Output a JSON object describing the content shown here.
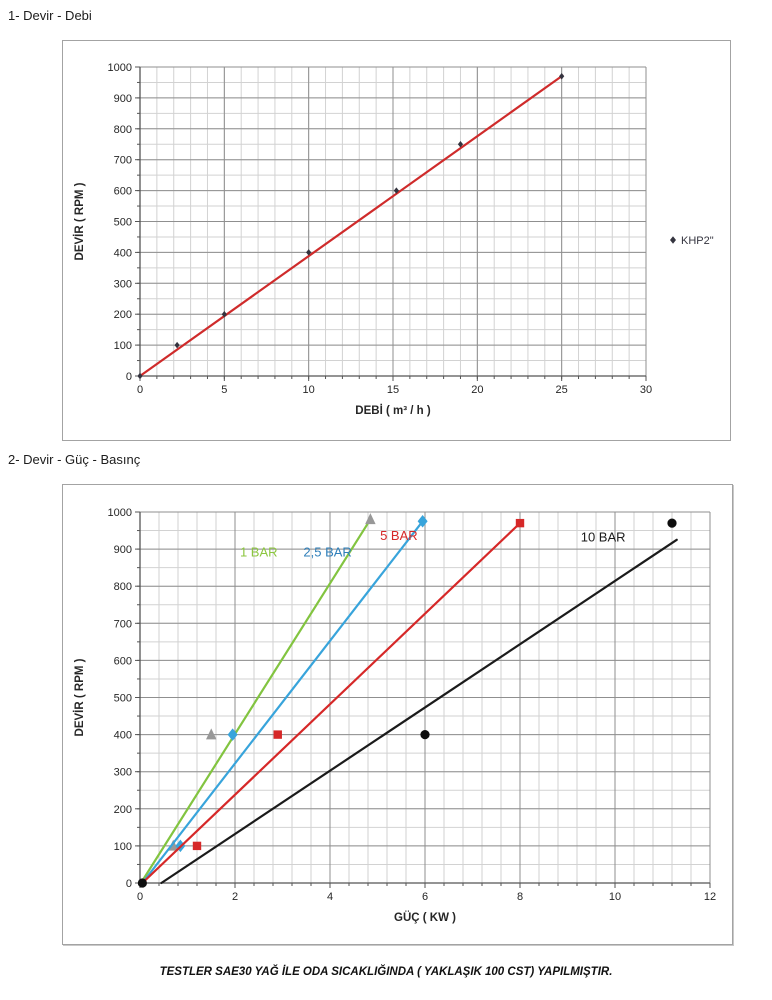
{
  "page": {
    "section1_title": "1- Devir - Debi",
    "section2_title": "2- Devir - Güç - Basınç",
    "footer": "TESTLER SAE30 YAĞ İLE ODA SICAKLIĞINDA ( YAKLAŞIK 100 CST) YAPILMIŞTIR."
  },
  "chart_data": [
    {
      "type": "scatter",
      "title": "",
      "xlabel": "DEBİ ( m³ / h )",
      "ylabel": "DEVİR ( RPM )",
      "xlim": [
        0,
        30
      ],
      "ylim": [
        0,
        1000
      ],
      "x_major": 5,
      "x_minor": 1,
      "y_major": 100,
      "y_minor": 50,
      "grid": "on",
      "legend": {
        "label": "KHP2\"",
        "marker": "diamond",
        "marker_color": "#34343f",
        "position": "right-middle"
      },
      "series": [
        {
          "name": "KHP2\"",
          "line_color": "#cf2b2b",
          "marker": "diamond",
          "marker_color": "#34343f",
          "marker_size": 2.6,
          "trendline": [
            [
              0,
              0
            ],
            [
              25.05,
              972
            ]
          ],
          "points": [
            [
              0,
              0
            ],
            [
              2.2,
              100
            ],
            [
              5,
              200
            ],
            [
              10,
              400
            ],
            [
              15.2,
              600
            ],
            [
              19,
              750
            ],
            [
              25,
              970
            ]
          ]
        }
      ]
    },
    {
      "type": "scatter",
      "title": "",
      "xlabel": "GÜÇ ( KW )",
      "ylabel": "DEVİR ( RPM )",
      "xlim": [
        0,
        12
      ],
      "ylim": [
        0,
        1000
      ],
      "x_major": 2,
      "x_minor": 0.4,
      "y_major": 100,
      "y_minor": 50,
      "grid": "on",
      "series": [
        {
          "name": "1 BAR",
          "line_color": "#82c440",
          "label_color": "#8cc63f",
          "marker": "triangle",
          "marker_color": "#989898",
          "marker_size": 5,
          "trendline": [
            [
              0.02,
              0
            ],
            [
              4.85,
              980
            ]
          ],
          "points": [
            [
              0.7,
              100
            ],
            [
              1.5,
              400
            ],
            [
              4.85,
              980
            ]
          ],
          "label_pos": [
            2.5,
            880
          ]
        },
        {
          "name": "2,5 BAR",
          "line_color": "#38a4db",
          "label_color": "#2f7fba",
          "marker": "diamond",
          "marker_color": "#38a4db",
          "marker_size": 5,
          "trendline": [
            [
              0.05,
              0
            ],
            [
              5.95,
              975
            ]
          ],
          "points": [
            [
              0.85,
              100
            ],
            [
              1.95,
              400
            ],
            [
              5.95,
              975
            ]
          ],
          "label_pos": [
            3.95,
            880
          ]
        },
        {
          "name": "5 BAR",
          "line_color": "#d62828",
          "label_color": "#d62828",
          "marker": "square",
          "marker_color": "#d62828",
          "marker_size": 4.2,
          "trendline": [
            [
              0.05,
              0
            ],
            [
              8.0,
              970
            ]
          ],
          "points": [
            [
              1.2,
              100
            ],
            [
              2.9,
              400
            ],
            [
              8.0,
              970
            ]
          ],
          "label_pos": [
            5.45,
            925
          ]
        },
        {
          "name": "10 BAR",
          "line_color": "#1b1b1b",
          "label_color": "#1b1b1b",
          "marker": "circle",
          "marker_color": "#0e0e0e",
          "marker_size": 4.6,
          "trendline": [
            [
              0.45,
              0
            ],
            [
              11.3,
              925
            ]
          ],
          "points": [
            [
              0.05,
              0
            ],
            [
              6.0,
              400
            ],
            [
              11.2,
              970
            ]
          ],
          "label_pos": [
            9.75,
            920
          ]
        }
      ]
    }
  ]
}
